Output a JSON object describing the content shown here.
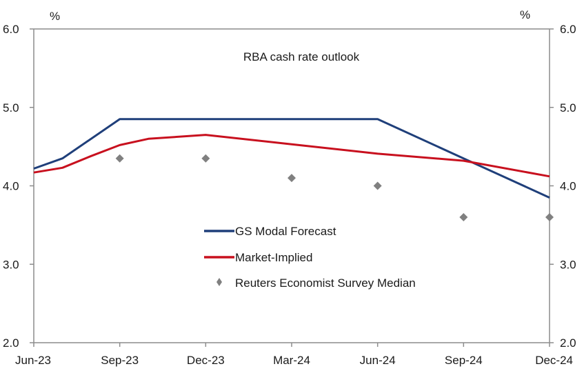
{
  "chart_data": {
    "type": "line",
    "title": "RBA cash rate outlook",
    "xlabel": "",
    "ylabel_left": "%",
    "ylabel_right": "%",
    "ylim": [
      2.0,
      6.0
    ],
    "yticks": [
      "2.0",
      "3.0",
      "4.0",
      "5.0",
      "6.0"
    ],
    "ytick_values": [
      2.0,
      3.0,
      4.0,
      5.0,
      6.0
    ],
    "x_categories": [
      "Jun-23",
      "Sep-23",
      "Dec-23",
      "Mar-24",
      "Jun-24",
      "Sep-24",
      "Dec-24"
    ],
    "x_range_months": [
      0,
      18
    ],
    "grid": false,
    "legend_position": "center",
    "series": [
      {
        "name": "GS Modal Forecast",
        "kind": "line",
        "color": "#1f3f7a",
        "points": [
          [
            0,
            4.22
          ],
          [
            1,
            4.35
          ],
          [
            3,
            4.85
          ],
          [
            6,
            4.85
          ],
          [
            9,
            4.85
          ],
          [
            12,
            4.85
          ],
          [
            15,
            4.35
          ],
          [
            18,
            3.85
          ]
        ]
      },
      {
        "name": "Market-Implied",
        "kind": "line",
        "color": "#c8101e",
        "points": [
          [
            0,
            4.17
          ],
          [
            1,
            4.23
          ],
          [
            2,
            4.38
          ],
          [
            3,
            4.52
          ],
          [
            4,
            4.6
          ],
          [
            6,
            4.65
          ],
          [
            9,
            4.53
          ],
          [
            12,
            4.41
          ],
          [
            15,
            4.32
          ],
          [
            18,
            4.12
          ]
        ]
      },
      {
        "name": "Reuters Economist Survey Median",
        "kind": "scatter",
        "marker": "diamond",
        "color": "#808080",
        "points": [
          [
            3,
            4.35
          ],
          [
            6,
            4.35
          ],
          [
            9,
            4.1
          ],
          [
            12,
            4.0
          ],
          [
            15,
            3.6
          ],
          [
            18,
            3.6
          ]
        ]
      }
    ]
  }
}
